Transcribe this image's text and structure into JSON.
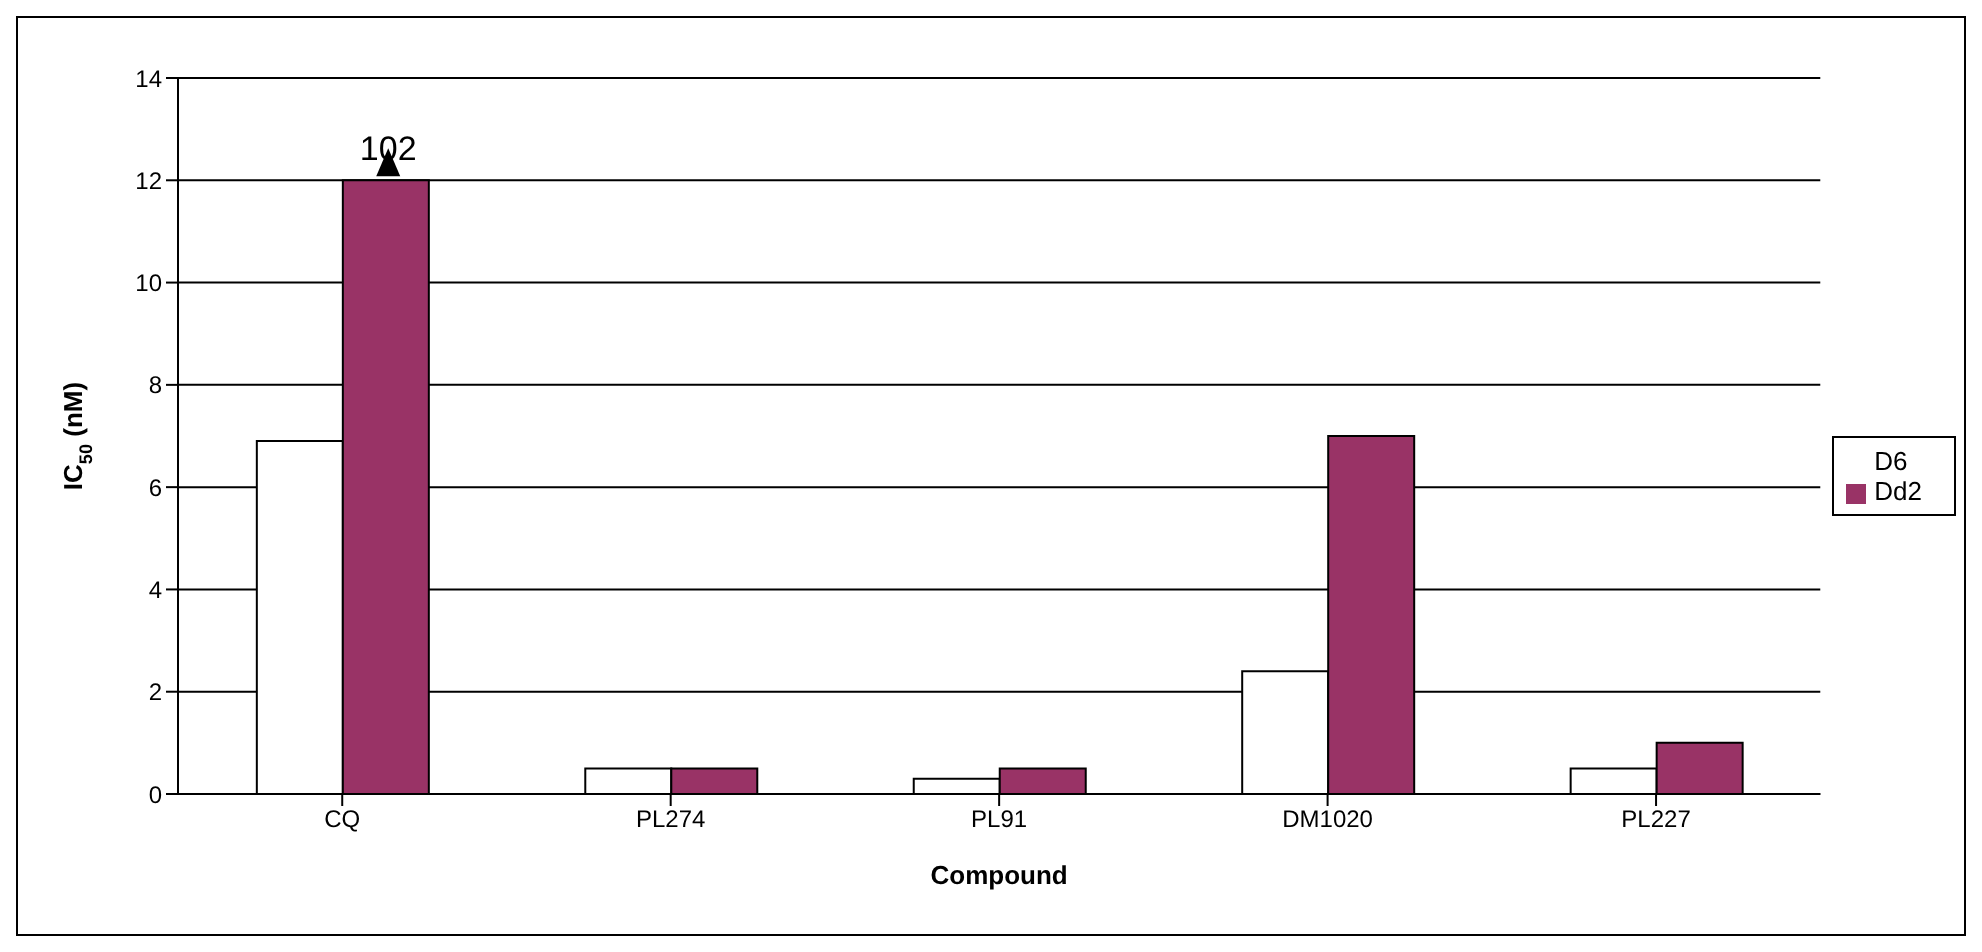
{
  "chart_data": {
    "type": "bar",
    "xlabel": "Compound",
    "ylabel": "IC$_{50}$ (nM)",
    "categories": [
      "CQ",
      "PL274",
      "PL91",
      "DM1020",
      "PL227"
    ],
    "series": [
      {
        "name": "D6",
        "color": "#ffffff",
        "values": [
          6.9,
          0.5,
          0.3,
          2.4,
          0.5
        ]
      },
      {
        "name": "Dd2",
        "color": "#993366",
        "values": [
          12,
          0.5,
          0.5,
          7,
          1.0
        ]
      }
    ],
    "ylim": [
      0,
      14
    ],
    "yticks": [
      0,
      2,
      4,
      6,
      8,
      10,
      12,
      14
    ],
    "grid": "y",
    "legend": "right",
    "annotations": [
      {
        "text": "102",
        "x": "CQ",
        "y": 12
      }
    ]
  }
}
